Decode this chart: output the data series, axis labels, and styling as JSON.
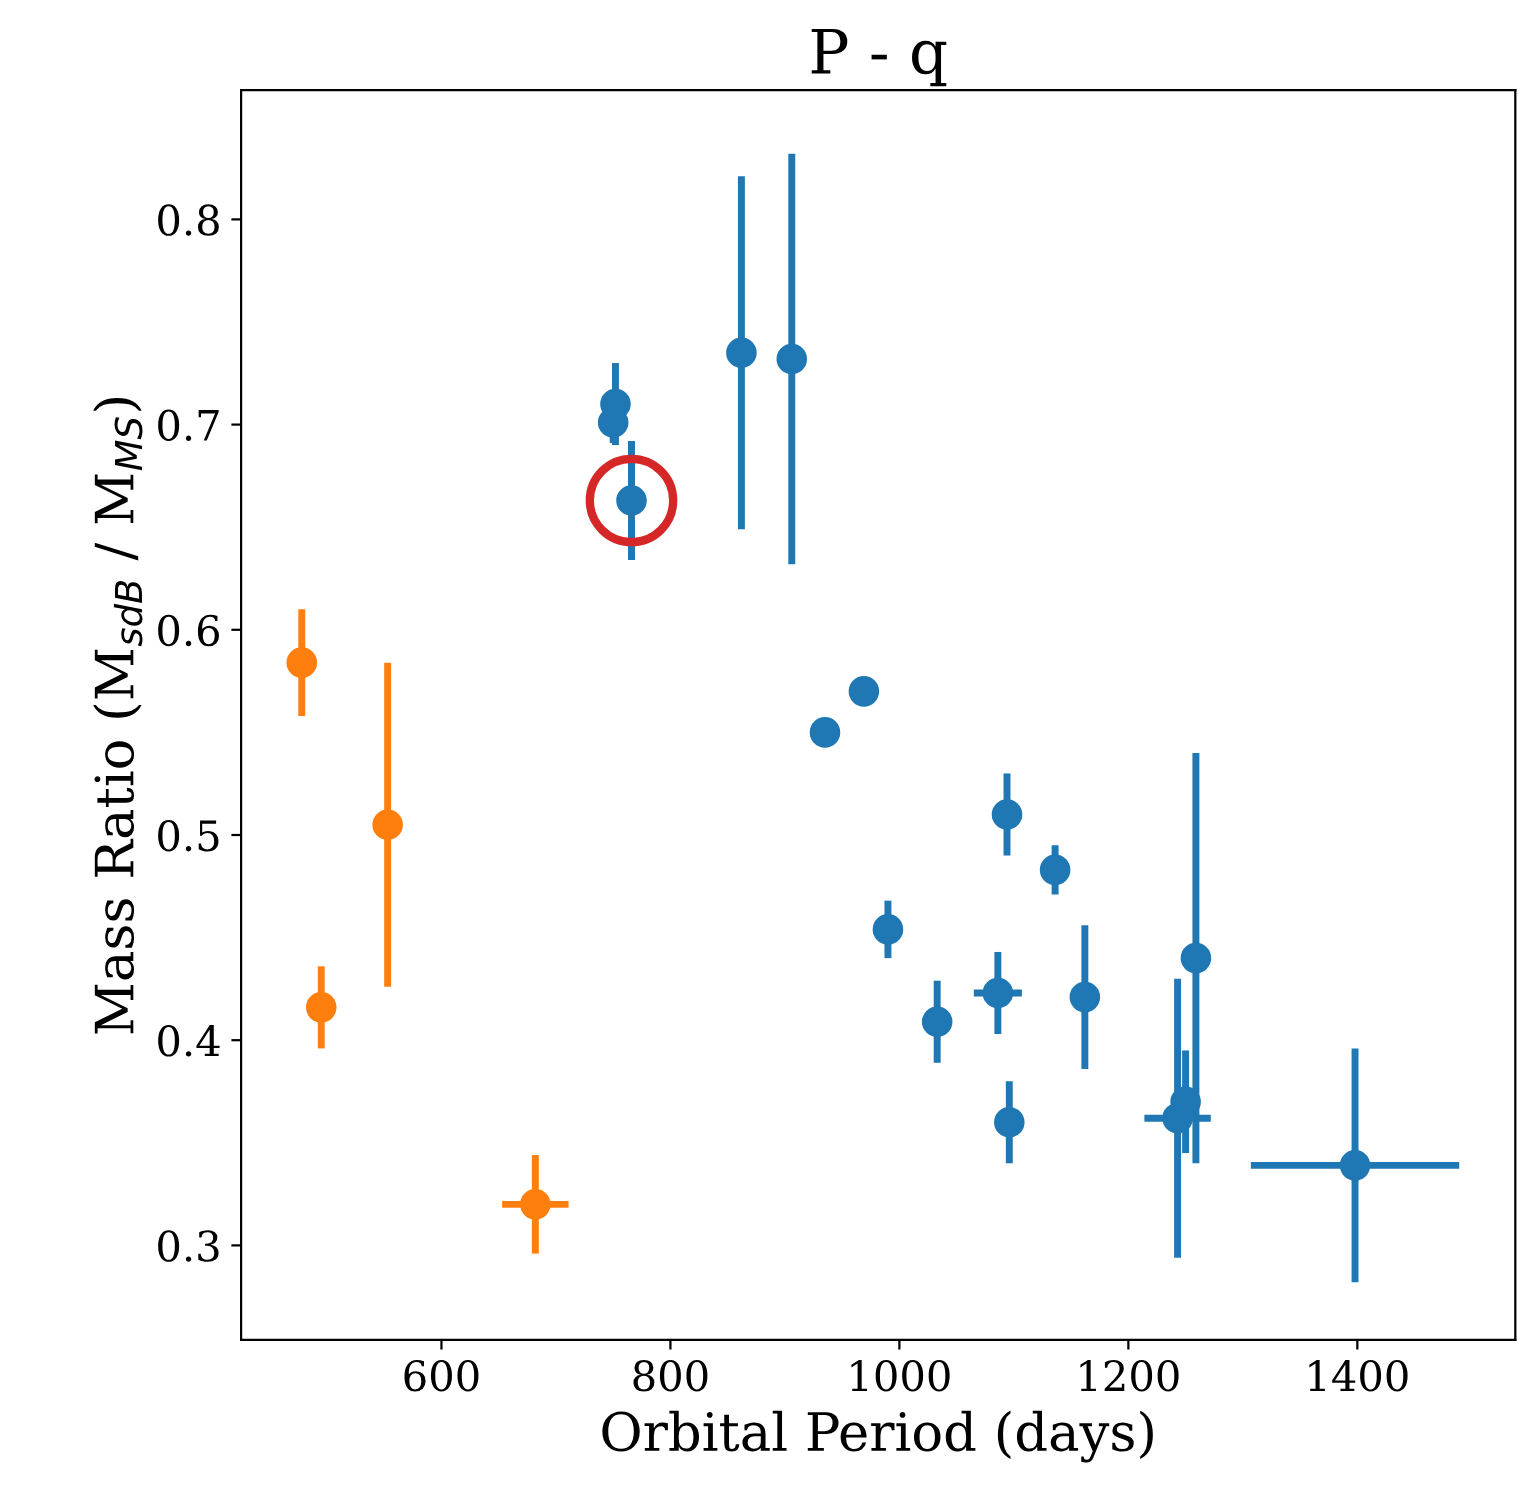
{
  "chart_data": {
    "type": "scatter",
    "title": "P - q",
    "xlabel": "Orbital Period (days)",
    "ylabel": "Mass Ratio (M$_{sdB}$ / M$_{MS}$)",
    "xlim": [
      425,
      1538
    ],
    "ylim": [
      0.254,
      0.863
    ],
    "xticks": [
      600,
      800,
      1000,
      1200,
      1400
    ],
    "yticks": [
      0.3,
      0.4,
      0.5,
      0.6,
      0.7,
      0.8
    ],
    "grid": false,
    "legend": false,
    "marker": "circle",
    "series": [
      {
        "color": "#1f77b4",
        "x": [
          752,
          750,
          766,
          862,
          906,
          935,
          969,
          990,
          1033,
          1086,
          1094,
          1096,
          1136,
          1162,
          1259,
          1243,
          1250,
          1398
        ],
        "values": [
          0.71,
          0.701,
          0.663,
          0.735,
          0.732,
          0.55,
          0.57,
          0.454,
          0.409,
          0.423,
          0.51,
          0.36,
          0.483,
          0.421,
          0.44,
          0.362,
          0.37,
          0.339
        ],
        "errors": [
          0.02,
          0.01,
          0.029,
          0.086,
          0.1,
          0.006,
          0.006,
          0.014,
          0.02,
          0.02,
          0.02,
          0.02,
          0.012,
          0.035,
          0.1,
          0.068,
          0.025,
          0.057
        ],
        "xerrors": [
          null,
          null,
          null,
          null,
          null,
          null,
          null,
          null,
          null,
          21,
          null,
          null,
          null,
          null,
          null,
          29,
          null,
          91
        ]
      },
      {
        "color": "#ff7f0e",
        "x": [
          478,
          495,
          553,
          682
        ],
        "values": [
          0.584,
          0.416,
          0.505,
          0.32
        ],
        "errors": [
          0.026,
          0.02,
          0.079,
          0.024
        ],
        "xerrors": [
          null,
          null,
          null,
          29
        ]
      },
      {
        "color": "#d62728",
        "x": [
          766
        ],
        "values": [
          0.663
        ],
        "marker": "circle"
      }
    ]
  }
}
